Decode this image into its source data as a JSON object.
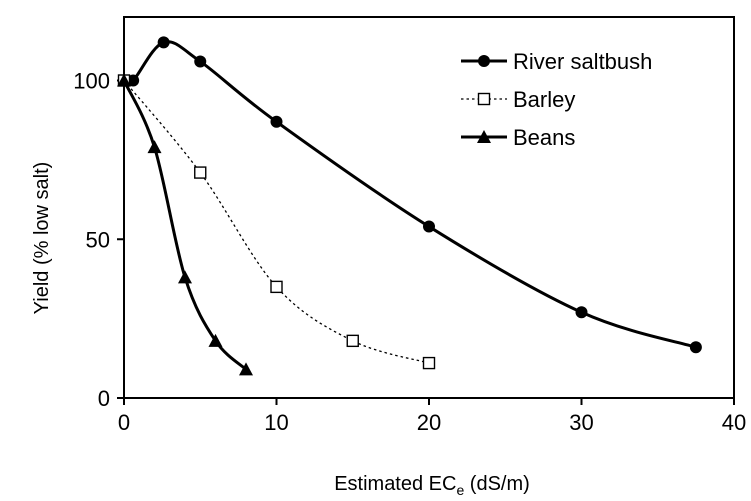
{
  "chart_data": {
    "type": "line",
    "xlabel": {
      "main": "Estimated EC",
      "sub": "e",
      "unit": " (dS/m)"
    },
    "ylabel": "Yield (% low salt)",
    "xlim": [
      0,
      40
    ],
    "ylim": [
      0,
      120
    ],
    "xticks": [
      "0",
      "10",
      "20",
      "30",
      "40"
    ],
    "yticks": [
      "0",
      "50",
      "100"
    ],
    "xtick_values": [
      0,
      10,
      20,
      30,
      40
    ],
    "ytick_values": [
      0,
      50,
      100
    ],
    "grid": false,
    "legend": "top-right",
    "series": [
      {
        "name": "River saltbush",
        "marker": "circle",
        "line": "solid",
        "color": "#000000",
        "x": [
          0,
          0.6,
          2.6,
          5,
          10,
          20,
          30,
          37.5
        ],
        "y": [
          100,
          100,
          112,
          106,
          87,
          54,
          27,
          16
        ]
      },
      {
        "name": "Barley",
        "marker": "open-square",
        "line": "dotted",
        "color": "#000000",
        "x": [
          0,
          5,
          10,
          15,
          20
        ],
        "y": [
          100,
          71,
          35,
          18,
          11
        ]
      },
      {
        "name": "Beans",
        "marker": "triangle",
        "line": "solid",
        "color": "#000000",
        "x": [
          0,
          2,
          4,
          6,
          8
        ],
        "y": [
          100,
          79,
          38,
          18,
          9
        ]
      }
    ]
  }
}
